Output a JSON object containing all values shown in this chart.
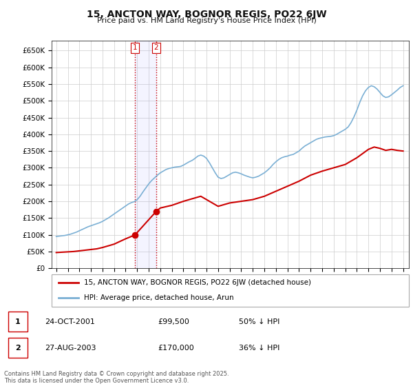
{
  "title": "15, ANCTON WAY, BOGNOR REGIS, PO22 6JW",
  "subtitle": "Price paid vs. HM Land Registry's House Price Index (HPI)",
  "yticks": [
    0,
    50000,
    100000,
    150000,
    200000,
    250000,
    300000,
    350000,
    400000,
    450000,
    500000,
    550000,
    600000,
    650000
  ],
  "xlim_start": 1994.6,
  "xlim_end": 2025.5,
  "ylim": [
    0,
    680000
  ],
  "legend_line1": "15, ANCTON WAY, BOGNOR REGIS, PO22 6JW (detached house)",
  "legend_line2": "HPI: Average price, detached house, Arun",
  "transaction1_date": "24-OCT-2001",
  "transaction1_price": "£99,500",
  "transaction1_hpi": "50% ↓ HPI",
  "transaction2_date": "27-AUG-2003",
  "transaction2_price": "£170,000",
  "transaction2_hpi": "36% ↓ HPI",
  "footnote": "Contains HM Land Registry data © Crown copyright and database right 2025.\nThis data is licensed under the Open Government Licence v3.0.",
  "price_color": "#cc0000",
  "hpi_color": "#7aafd4",
  "background_color": "#ffffff",
  "plot_bg_color": "#ffffff",
  "grid_color": "#cccccc",
  "transaction1_x": 2001.81,
  "transaction2_x": 2003.65,
  "transaction1_y": 99500,
  "transaction2_y": 170000,
  "vline_color": "#cc0000",
  "hpi_data_years": [
    1995,
    1995.25,
    1995.5,
    1995.75,
    1996,
    1996.25,
    1996.5,
    1996.75,
    1997,
    1997.25,
    1997.5,
    1997.75,
    1998,
    1998.25,
    1998.5,
    1998.75,
    1999,
    1999.25,
    1999.5,
    1999.75,
    2000,
    2000.25,
    2000.5,
    2000.75,
    2001,
    2001.25,
    2001.5,
    2001.75,
    2002,
    2002.25,
    2002.5,
    2002.75,
    2003,
    2003.25,
    2003.5,
    2003.75,
    2004,
    2004.25,
    2004.5,
    2004.75,
    2005,
    2005.25,
    2005.5,
    2005.75,
    2006,
    2006.25,
    2006.5,
    2006.75,
    2007,
    2007.25,
    2007.5,
    2007.75,
    2008,
    2008.25,
    2008.5,
    2008.75,
    2009,
    2009.25,
    2009.5,
    2009.75,
    2010,
    2010.25,
    2010.5,
    2010.75,
    2011,
    2011.25,
    2011.5,
    2011.75,
    2012,
    2012.25,
    2012.5,
    2012.75,
    2013,
    2013.25,
    2013.5,
    2013.75,
    2014,
    2014.25,
    2014.5,
    2014.75,
    2015,
    2015.25,
    2015.5,
    2015.75,
    2016,
    2016.25,
    2016.5,
    2016.75,
    2017,
    2017.25,
    2017.5,
    2017.75,
    2018,
    2018.25,
    2018.5,
    2018.75,
    2019,
    2019.25,
    2019.5,
    2019.75,
    2020,
    2020.25,
    2020.5,
    2020.75,
    2021,
    2021.25,
    2021.5,
    2021.75,
    2022,
    2022.25,
    2022.5,
    2022.75,
    2023,
    2023.25,
    2023.5,
    2023.75,
    2024,
    2024.25,
    2024.5,
    2024.75,
    2025
  ],
  "hpi_data_values": [
    95000,
    96000,
    97000,
    98000,
    100000,
    102000,
    105000,
    108000,
    112000,
    116000,
    120000,
    124000,
    127000,
    130000,
    133000,
    136000,
    140000,
    145000,
    150000,
    156000,
    162000,
    168000,
    174000,
    180000,
    186000,
    192000,
    196000,
    199000,
    205000,
    215000,
    228000,
    240000,
    252000,
    262000,
    270000,
    278000,
    285000,
    290000,
    295000,
    298000,
    300000,
    302000,
    303000,
    304000,
    308000,
    313000,
    318000,
    322000,
    328000,
    335000,
    338000,
    335000,
    328000,
    315000,
    300000,
    285000,
    272000,
    268000,
    270000,
    275000,
    280000,
    285000,
    287000,
    285000,
    282000,
    278000,
    275000,
    272000,
    270000,
    272000,
    275000,
    280000,
    285000,
    292000,
    300000,
    310000,
    318000,
    325000,
    330000,
    333000,
    335000,
    338000,
    340000,
    345000,
    350000,
    358000,
    365000,
    370000,
    375000,
    380000,
    385000,
    388000,
    390000,
    392000,
    393000,
    394000,
    396000,
    400000,
    405000,
    410000,
    415000,
    422000,
    435000,
    452000,
    472000,
    495000,
    515000,
    530000,
    540000,
    545000,
    542000,
    535000,
    525000,
    515000,
    510000,
    512000,
    518000,
    525000,
    532000,
    540000,
    545000
  ],
  "price_data_years": [
    1995,
    1995.5,
    1996,
    1996.5,
    1997,
    1997.5,
    1998,
    1998.5,
    1999,
    1999.5,
    2000,
    2000.5,
    2001,
    2001.81,
    2003.65,
    2004,
    2005,
    2006,
    2007,
    2007.5,
    2008,
    2009,
    2009.5,
    2010,
    2011,
    2012,
    2013,
    2014,
    2015,
    2016,
    2017,
    2018,
    2019,
    2020,
    2021,
    2022,
    2022.5,
    2023,
    2023.5,
    2024,
    2024.5,
    2025
  ],
  "price_data_values": [
    47000,
    48000,
    49000,
    50000,
    52000,
    54000,
    56000,
    58000,
    62000,
    67000,
    72000,
    80000,
    88000,
    99500,
    170000,
    180000,
    188000,
    200000,
    210000,
    215000,
    205000,
    185000,
    190000,
    195000,
    200000,
    205000,
    215000,
    230000,
    245000,
    260000,
    278000,
    290000,
    300000,
    310000,
    330000,
    355000,
    362000,
    358000,
    352000,
    355000,
    352000,
    350000
  ]
}
